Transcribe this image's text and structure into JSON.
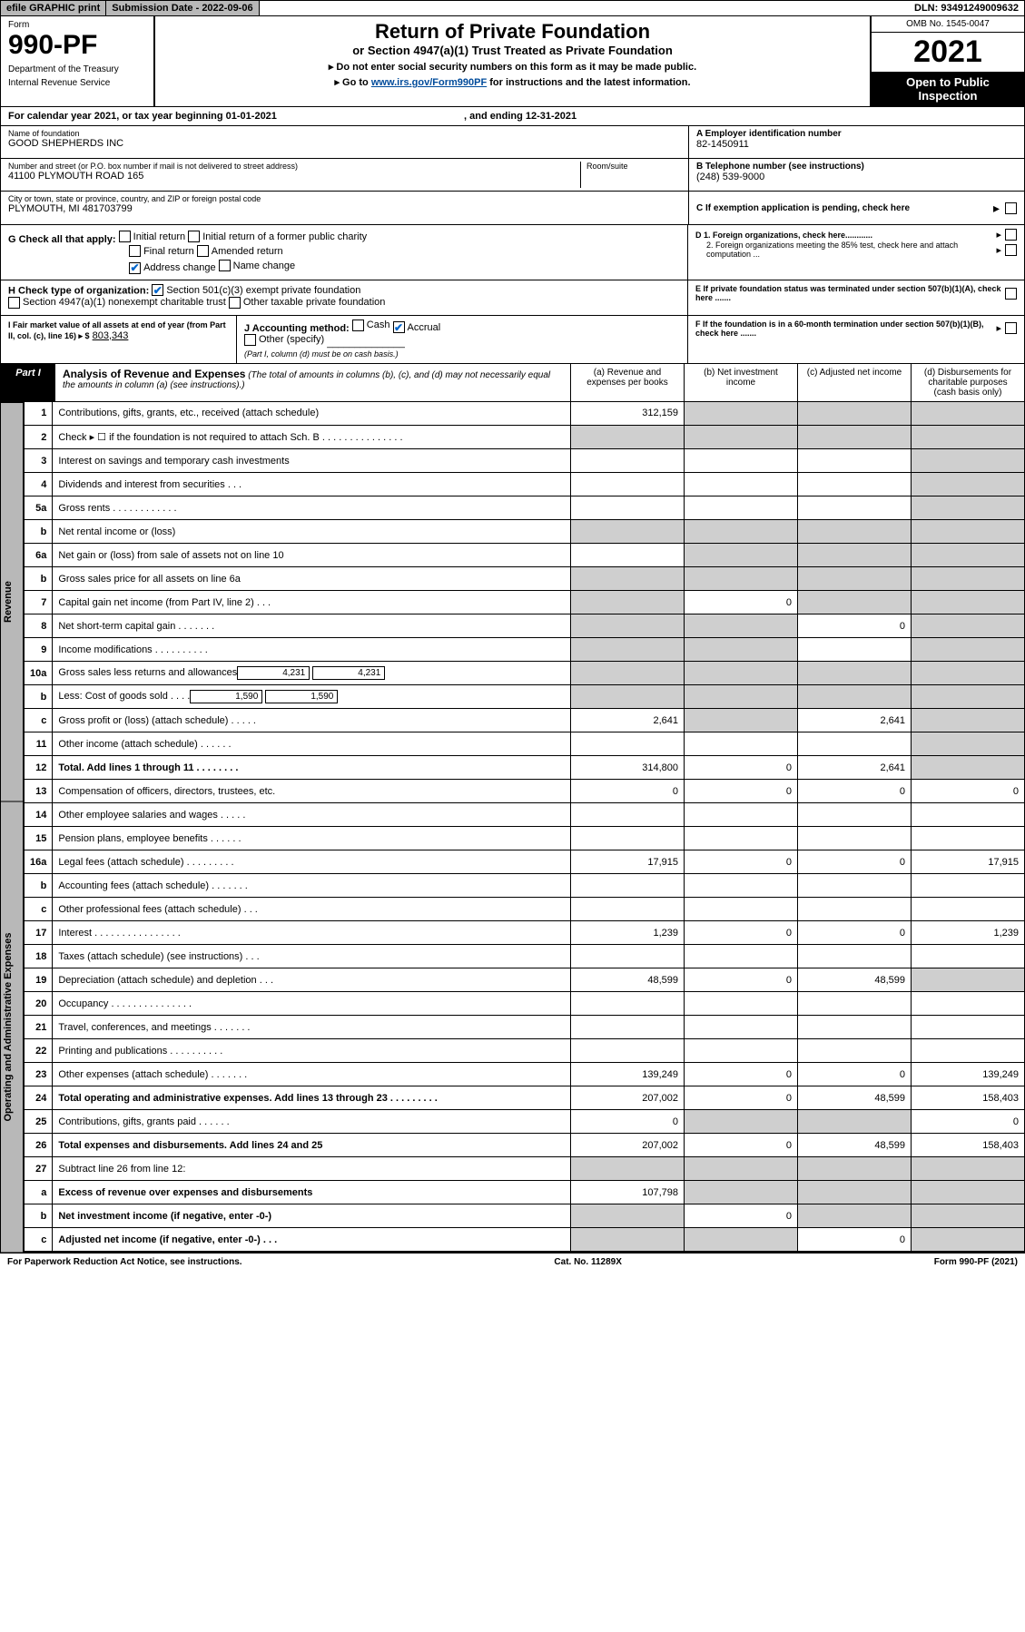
{
  "topbar": {
    "efile": "efile GRAPHIC print",
    "subdate_label": "Submission Date - 2022-09-06",
    "dln": "DLN: 93491249009632"
  },
  "header": {
    "form_label": "Form",
    "form_number": "990-PF",
    "dept1": "Department of the Treasury",
    "dept2": "Internal Revenue Service",
    "title": "Return of Private Foundation",
    "sub": "or Section 4947(a)(1) Trust Treated as Private Foundation",
    "notice1": "▸ Do not enter social security numbers on this form as it may be made public.",
    "notice2": "▸ Go to www.irs.gov/Form990PF for instructions and the latest information.",
    "omb": "OMB No. 1545-0047",
    "year": "2021",
    "open": "Open to Public Inspection"
  },
  "calyear": {
    "text": "For calendar year 2021, or tax year beginning 01-01-2021",
    "ending": ", and ending 12-31-2021"
  },
  "entity": {
    "name_lbl": "Name of foundation",
    "name": "GOOD SHEPHERDS INC",
    "addr_lbl": "Number and street (or P.O. box number if mail is not delivered to street address)",
    "addr": "41100 PLYMOUTH ROAD 165",
    "room_lbl": "Room/suite",
    "city_lbl": "City or town, state or province, country, and ZIP or foreign postal code",
    "city": "PLYMOUTH, MI  481703799",
    "ein_lbl": "A Employer identification number",
    "ein": "82-1450911",
    "tel_lbl": "B Telephone number (see instructions)",
    "tel": "(248) 539-9000",
    "c_lbl": "C If exemption application is pending, check here",
    "d1_lbl": "D 1. Foreign organizations, check here............",
    "d2_lbl": "2. Foreign organizations meeting the 85% test, check here and attach computation ...",
    "e_lbl": "E If private foundation status was terminated under section 507(b)(1)(A), check here .......",
    "f_lbl": "F If the foundation is in a 60-month termination under section 507(b)(1)(B), check here ......."
  },
  "g": {
    "label": "G Check all that apply:",
    "initial": "Initial return",
    "initial_former": "Initial return of a former public charity",
    "final": "Final return",
    "amended": "Amended return",
    "addr_change": "Address change",
    "name_change": "Name change"
  },
  "h": {
    "label": "H Check type of organization:",
    "s501": "Section 501(c)(3) exempt private foundation",
    "s4947": "Section 4947(a)(1) nonexempt charitable trust",
    "other_tax": "Other taxable private foundation"
  },
  "i": {
    "label": "I Fair market value of all assets at end of year (from Part II, col. (c), line 16) ▸ $",
    "value": "803,343"
  },
  "j": {
    "label": "J Accounting method:",
    "cash": "Cash",
    "accrual": "Accrual",
    "other": "Other (specify)",
    "note": "(Part I, column (d) must be on cash basis.)"
  },
  "part1": {
    "label": "Part I",
    "title": "Analysis of Revenue and Expenses",
    "desc": "(The total of amounts in columns (b), (c), and (d) may not necessarily equal the amounts in column (a) (see instructions).)",
    "col_a": "(a) Revenue and expenses per books",
    "col_b": "(b) Net investment income",
    "col_c": "(c) Adjusted net income",
    "col_d": "(d) Disbursements for charitable purposes (cash basis only)"
  },
  "side": {
    "revenue": "Revenue",
    "opex": "Operating and Administrative Expenses"
  },
  "rows": [
    {
      "n": "1",
      "d": "",
      "a": "312,159",
      "b": "",
      "c": "",
      "sh_b": true,
      "sh_c": true,
      "sh_d": true
    },
    {
      "n": "2",
      "d": "",
      "a": "",
      "b": "",
      "c": "",
      "sh_a": true,
      "sh_b": true,
      "sh_c": true,
      "sh_d": true
    },
    {
      "n": "3",
      "d": "",
      "a": "",
      "b": "",
      "c": "",
      "sh_d": true
    },
    {
      "n": "4",
      "d": "",
      "a": "",
      "b": "",
      "c": "",
      "sh_d": true
    },
    {
      "n": "5a",
      "d": "",
      "a": "",
      "b": "",
      "c": "",
      "sh_d": true
    },
    {
      "n": "b",
      "d": "",
      "a": "",
      "b": "",
      "c": "",
      "sh_a": true,
      "sh_b": true,
      "sh_c": true,
      "sh_d": true
    },
    {
      "n": "6a",
      "d": "",
      "a": "",
      "b": "",
      "c": "",
      "sh_b": true,
      "sh_c": true,
      "sh_d": true
    },
    {
      "n": "b",
      "d": "",
      "a": "",
      "b": "",
      "c": "",
      "sh_a": true,
      "sh_b": true,
      "sh_c": true,
      "sh_d": true
    },
    {
      "n": "7",
      "d": "",
      "a": "",
      "b": "0",
      "c": "",
      "sh_a": true,
      "sh_c": true,
      "sh_d": true
    },
    {
      "n": "8",
      "d": "",
      "a": "",
      "b": "",
      "c": "0",
      "sh_a": true,
      "sh_b": true,
      "sh_d": true
    },
    {
      "n": "9",
      "d": "",
      "a": "",
      "b": "",
      "c": "",
      "sh_a": true,
      "sh_b": true,
      "sh_d": true
    },
    {
      "n": "10a",
      "d": "",
      "sub": "4,231",
      "a": "",
      "b": "",
      "c": "",
      "sh_a": true,
      "sh_b": true,
      "sh_c": true,
      "sh_d": true
    },
    {
      "n": "b",
      "d": "",
      "sub": "1,590",
      "a": "",
      "b": "",
      "c": "",
      "sh_a": true,
      "sh_b": true,
      "sh_c": true,
      "sh_d": true
    },
    {
      "n": "c",
      "d": "",
      "a": "2,641",
      "b": "",
      "c": "2,641",
      "sh_b": true,
      "sh_d": true
    },
    {
      "n": "11",
      "d": "",
      "a": "",
      "b": "",
      "c": "",
      "sh_d": true
    },
    {
      "n": "12",
      "d": "",
      "a": "314,800",
      "b": "0",
      "c": "2,641",
      "sh_d": true,
      "bold": true
    },
    {
      "n": "13",
      "d": "0",
      "a": "0",
      "b": "0",
      "c": "0"
    },
    {
      "n": "14",
      "d": "",
      "a": "",
      "b": "",
      "c": ""
    },
    {
      "n": "15",
      "d": "",
      "a": "",
      "b": "",
      "c": ""
    },
    {
      "n": "16a",
      "d": "17,915",
      "a": "17,915",
      "b": "0",
      "c": "0"
    },
    {
      "n": "b",
      "d": "",
      "a": "",
      "b": "",
      "c": ""
    },
    {
      "n": "c",
      "d": "",
      "a": "",
      "b": "",
      "c": ""
    },
    {
      "n": "17",
      "d": "1,239",
      "a": "1,239",
      "b": "0",
      "c": "0"
    },
    {
      "n": "18",
      "d": "",
      "a": "",
      "b": "",
      "c": ""
    },
    {
      "n": "19",
      "d": "",
      "a": "48,599",
      "b": "0",
      "c": "48,599",
      "sh_d": true
    },
    {
      "n": "20",
      "d": "",
      "a": "",
      "b": "",
      "c": ""
    },
    {
      "n": "21",
      "d": "",
      "a": "",
      "b": "",
      "c": ""
    },
    {
      "n": "22",
      "d": "",
      "a": "",
      "b": "",
      "c": ""
    },
    {
      "n": "23",
      "d": "139,249",
      "a": "139,249",
      "b": "0",
      "c": "0"
    },
    {
      "n": "24",
      "d": "158,403",
      "a": "207,002",
      "b": "0",
      "c": "48,599",
      "bold": true
    },
    {
      "n": "25",
      "d": "0",
      "a": "0",
      "b": "",
      "c": "",
      "sh_b": true,
      "sh_c": true
    },
    {
      "n": "26",
      "d": "158,403",
      "a": "207,002",
      "b": "0",
      "c": "48,599",
      "bold": true
    },
    {
      "n": "27",
      "d": "",
      "a": "",
      "b": "",
      "c": "",
      "sh_a": true,
      "sh_b": true,
      "sh_c": true,
      "sh_d": true
    },
    {
      "n": "a",
      "d": "",
      "a": "107,798",
      "b": "",
      "c": "",
      "sh_b": true,
      "sh_c": true,
      "sh_d": true,
      "bold": true
    },
    {
      "n": "b",
      "d": "",
      "a": "",
      "b": "0",
      "c": "",
      "sh_a": true,
      "sh_c": true,
      "sh_d": true,
      "bold": true
    },
    {
      "n": "c",
      "d": "",
      "a": "",
      "b": "",
      "c": "0",
      "sh_a": true,
      "sh_b": true,
      "sh_d": true,
      "bold": true
    }
  ],
  "footer": {
    "left": "For Paperwork Reduction Act Notice, see instructions.",
    "mid": "Cat. No. 11289X",
    "right": "Form 990-PF (2021)"
  }
}
